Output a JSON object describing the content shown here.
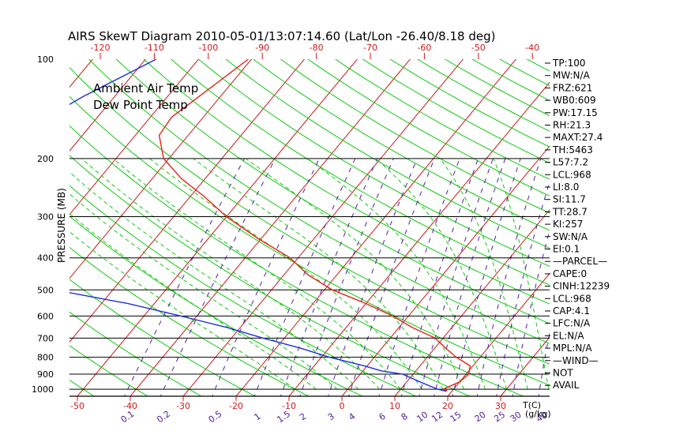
{
  "chart_data": {
    "type": "line",
    "title": "AIRS SkewT Diagram 2010-05-01/13:07:14.60 (Lat/Lon -26.40/8.18 deg)",
    "ylabel": "PRESSURE (MB)",
    "xlabel": "T(C)",
    "mixing_ratio_label": "(g/kg)",
    "y_scale": "log",
    "ylim": [
      1050,
      100
    ],
    "xlim": [
      -50,
      30
    ],
    "y_ticks": [
      100,
      200,
      300,
      400,
      500,
      600,
      700,
      800,
      900,
      1000
    ],
    "x_ticks_bottom": [
      -50,
      -40,
      -30,
      -20,
      -10,
      0,
      10,
      20,
      30
    ],
    "x_ticks_top": [
      -120,
      -110,
      -100,
      -90,
      -80,
      -70,
      -60,
      -50,
      -40
    ],
    "mixing_ratio_ticks": [
      "0.1",
      "0.2",
      "0.5",
      "1",
      "1.5",
      "2",
      "3",
      "4",
      "6",
      "8",
      "10",
      "12",
      "15",
      "20",
      "25",
      "30",
      "40"
    ],
    "legend": [
      {
        "label": "Ambient Air Temp",
        "color": "#e8201a"
      },
      {
        "label": "Dew Point Temp",
        "color": "#2030d8"
      }
    ],
    "series": [
      {
        "name": "Ambient Air Temp",
        "color": "#e8201a",
        "points": [
          [
            100,
            -70.6
          ],
          [
            120,
            -73.0
          ],
          [
            150,
            -76.0
          ],
          [
            170,
            -75.5
          ],
          [
            200,
            -71.0
          ],
          [
            230,
            -64.5
          ],
          [
            260,
            -57.5
          ],
          [
            300,
            -50.0
          ],
          [
            350,
            -40.5
          ],
          [
            400,
            -31.5
          ],
          [
            450,
            -25.5
          ],
          [
            500,
            -18.5
          ],
          [
            550,
            -10.0
          ],
          [
            600,
            -3.0
          ],
          [
            650,
            2.5
          ],
          [
            700,
            8.5
          ],
          [
            750,
            12.0
          ],
          [
            800,
            15.5
          ],
          [
            850,
            19.5
          ],
          [
            900,
            20.5
          ],
          [
            950,
            20.0
          ],
          [
            1000,
            18.0
          ],
          [
            1010,
            19.0
          ]
        ]
      },
      {
        "name": "Dew Point Temp",
        "color": "#2030d8",
        "points": [
          [
            100,
            -88.0
          ],
          [
            130,
            -96.0
          ],
          [
            160,
            -101.0
          ],
          [
            200,
            -102.0
          ],
          [
            240,
            -100.5
          ],
          [
            300,
            -93.0
          ],
          [
            350,
            -87.0
          ],
          [
            400,
            -82.0
          ],
          [
            450,
            -75.0
          ],
          [
            500,
            -71.0
          ],
          [
            550,
            -55.0
          ],
          [
            600,
            -43.0
          ],
          [
            650,
            -32.5
          ],
          [
            700,
            -24.0
          ],
          [
            750,
            -15.5
          ],
          [
            800,
            -8.5
          ],
          [
            850,
            -0.5
          ],
          [
            880,
            3.5
          ],
          [
            900,
            8.0
          ],
          [
            950,
            12.5
          ],
          [
            1000,
            17.0
          ],
          [
            1015,
            19.0
          ]
        ]
      }
    ],
    "indices": [
      "TP:100",
      "MW:N/A",
      "FRZ:621",
      "WB0:609",
      "PW:17.15",
      "RH:21.3",
      "MAXT:27.4",
      "TH:5463",
      "L57:7.2",
      "LCL:968",
      "LI:8.0",
      "SI:11.7",
      "TT:28.7",
      "KI:257",
      "SW:N/A",
      "EI:0.1",
      "—PARCEL—",
      "CAPE:0",
      "CINH:12239",
      "LCL:968",
      "CAP:4.1",
      "LFC:N/A",
      "EL:N/A",
      "MPL:N/A",
      "—WIND—",
      "NOT",
      "AVAIL"
    ],
    "colors": {
      "isobar": "#000000",
      "isotherm": "#c81818",
      "dry_adiabat": "#10c810",
      "moist_adiabat": "#10c810",
      "mixing_ratio": "#5020a0",
      "top_axis": "#d01818",
      "bottom_axis": "#d01818",
      "mixing_ratio_labels": "#5020a0",
      "background": "#ffffff"
    }
  }
}
